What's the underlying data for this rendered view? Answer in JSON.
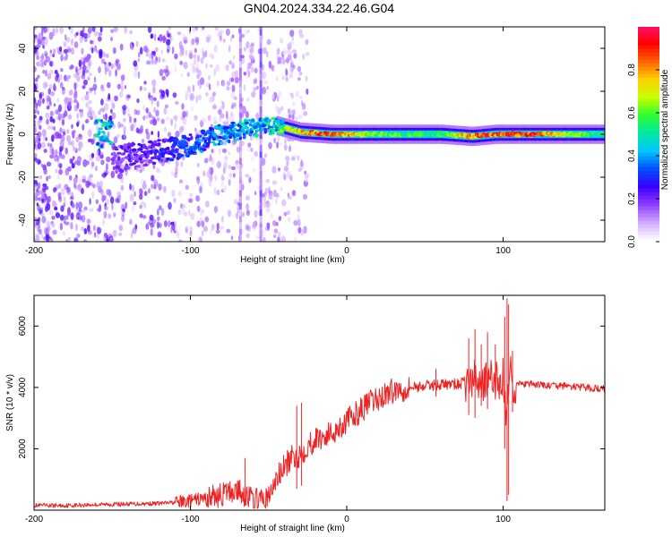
{
  "title": "GN04.2024.334.22.46.G04",
  "chart_data": [
    {
      "type": "heatmap",
      "title": "GN04.2024.334.22.46.G04",
      "xlabel": "Height of straight line (km)",
      "ylabel": "Frequency (Hz)",
      "xlim": [
        -200,
        165
      ],
      "ylim": [
        -50,
        50
      ],
      "xticks": [
        -200,
        -100,
        0,
        100
      ],
      "yticks": [
        -40,
        -20,
        0,
        20,
        40
      ],
      "colorbar": {
        "label": "Normalized spectral amplitude",
        "range": [
          0,
          1
        ],
        "ticks": [
          "0.0",
          "0.2",
          "0.4",
          "0.6",
          "0.8"
        ],
        "colormap": [
          "#ffffff",
          "#cfa8ff",
          "#8e3cff",
          "#3a00ff",
          "#0050ff",
          "#00c8ff",
          "#00e8a0",
          "#30ff30",
          "#c8ff00",
          "#ffd000",
          "#ff6000",
          "#ff0000",
          "#ff1070"
        ]
      },
      "ridge": [
        {
          "x": -150,
          "f": -12,
          "a": 0.2
        },
        {
          "x": -120,
          "f": -8,
          "a": 0.28
        },
        {
          "x": -100,
          "f": -5,
          "a": 0.35
        },
        {
          "x": -80,
          "f": 0,
          "a": 0.45
        },
        {
          "x": -60,
          "f": 3,
          "a": 0.5
        },
        {
          "x": -45,
          "f": 4,
          "a": 0.55
        },
        {
          "x": -30,
          "f": 1,
          "a": 0.8
        },
        {
          "x": -10,
          "f": 0,
          "a": 0.9
        },
        {
          "x": 20,
          "f": 0,
          "a": 0.6
        },
        {
          "x": 60,
          "f": 0,
          "a": 0.55
        },
        {
          "x": 80,
          "f": -1,
          "a": 0.85
        },
        {
          "x": 95,
          "f": 0,
          "a": 0.9
        },
        {
          "x": 120,
          "f": 0,
          "a": 0.9
        },
        {
          "x": 165,
          "f": 0,
          "a": 0.5
        }
      ]
    },
    {
      "type": "line",
      "xlabel": "Height of straight line (km)",
      "ylabel": "SNR (10 * v/v)",
      "xlim": [
        -200,
        165
      ],
      "ylim": [
        0,
        7000
      ],
      "xticks": [
        -200,
        -100,
        0,
        100
      ],
      "yticks": [
        2000,
        4000,
        6000
      ],
      "color": "#ee2222",
      "series": [
        {
          "x": [
            -200,
            -180,
            -160,
            -140,
            -120,
            -110,
            -100,
            -90,
            -80,
            -75,
            -70,
            -65,
            -60,
            -55,
            -50,
            -45,
            -40,
            -35,
            -30,
            -25,
            -20,
            -15,
            -10,
            -5,
            0,
            5,
            10,
            15,
            20,
            25,
            30,
            40,
            50,
            60,
            70,
            75,
            80,
            85,
            90,
            95,
            100,
            102,
            104,
            106,
            110,
            120,
            130,
            140,
            150,
            165
          ],
          "y": [
            150,
            150,
            180,
            200,
            220,
            250,
            300,
            400,
            500,
            600,
            650,
            500,
            350,
            300,
            400,
            1000,
            1400,
            1700,
            1800,
            2100,
            2300,
            2400,
            2500,
            2700,
            2900,
            3100,
            3300,
            3500,
            3600,
            3800,
            3900,
            4000,
            4050,
            4100,
            4100,
            4150,
            4200,
            4250,
            4200,
            4200,
            4300,
            3000,
            4700,
            4100,
            4100,
            4100,
            4050,
            4050,
            4000,
            3950
          ]
        }
      ],
      "spikes": [
        {
          "x": -65,
          "hi": 1700,
          "lo": 150
        },
        {
          "x": -32,
          "hi": 3400,
          "lo": 700
        },
        {
          "x": -29,
          "hi": 3500,
          "lo": 800
        },
        {
          "x": 57,
          "hi": 4600,
          "lo": 3700
        },
        {
          "x": 78,
          "hi": 5600,
          "lo": 3100
        },
        {
          "x": 82,
          "hi": 5900,
          "lo": 3000
        },
        {
          "x": 86,
          "hi": 5400,
          "lo": 3400
        },
        {
          "x": 90,
          "hi": 5800,
          "lo": 3300
        },
        {
          "x": 95,
          "hi": 5400,
          "lo": 3600
        },
        {
          "x": 101,
          "hi": 6300,
          "lo": 2000
        },
        {
          "x": 102.5,
          "hi": 6900,
          "lo": 300
        },
        {
          "x": 103.5,
          "hi": 6700,
          "lo": 500
        },
        {
          "x": 106,
          "hi": 5200,
          "lo": 3200
        }
      ]
    }
  ]
}
